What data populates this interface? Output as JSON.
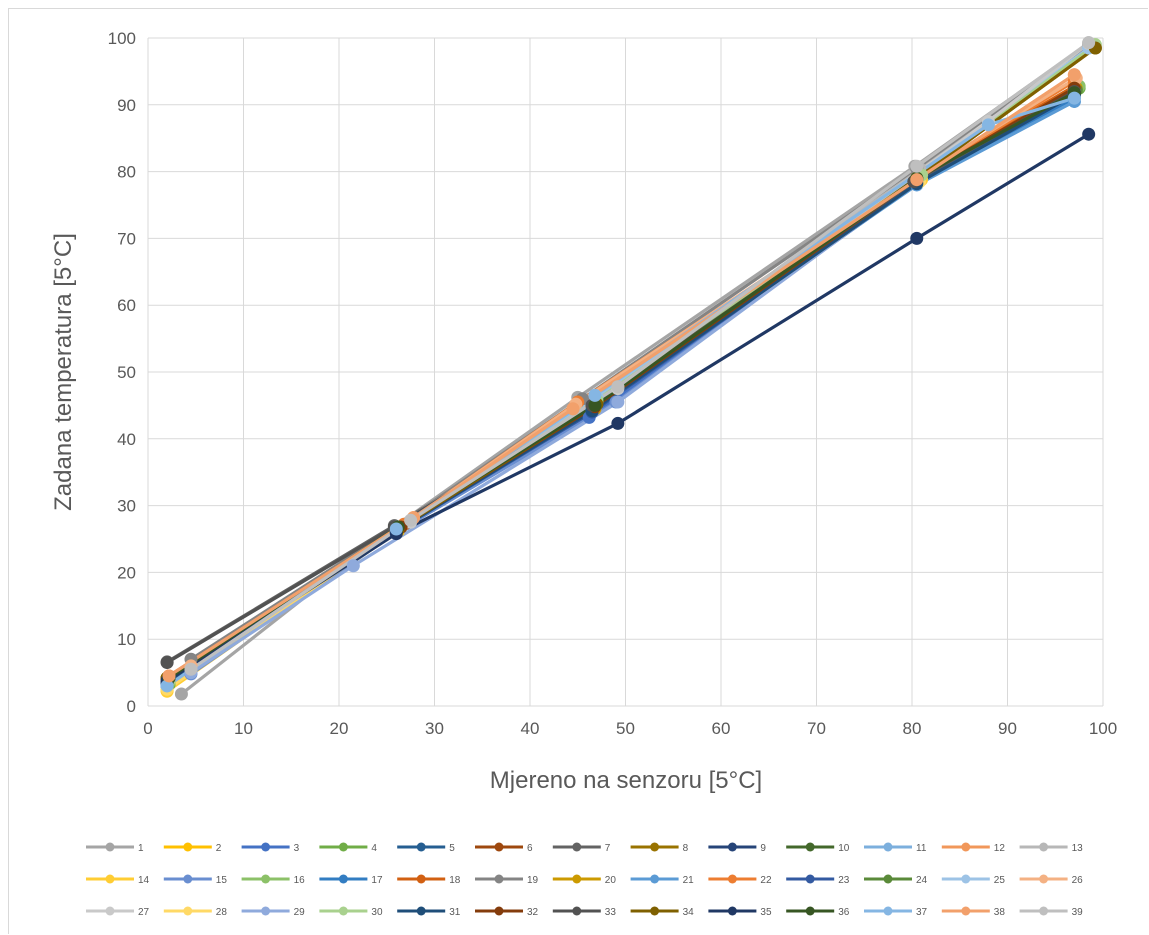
{
  "chart_data": {
    "type": "line",
    "title": "",
    "xlabel": "Mjereno na senzoru [5°C]",
    "ylabel": "Zadana temperatura [5°C]",
    "xlim": [
      0,
      100
    ],
    "ylim": [
      0,
      100
    ],
    "x_ticks": [
      0,
      10,
      20,
      30,
      40,
      50,
      60,
      70,
      80,
      90,
      100
    ],
    "y_ticks": [
      0,
      10,
      20,
      30,
      40,
      50,
      60,
      70,
      80,
      90,
      100
    ],
    "grid": true,
    "legend_position": "bottom",
    "colors": [
      "#a5a5a5",
      "#ffc000",
      "#4472c4",
      "#70ad47",
      "#255e91",
      "#9e480e",
      "#636363",
      "#997300",
      "#264478",
      "#43682b",
      "#7cafdd",
      "#f1975a",
      "#b7b7b7",
      "#ffcd33",
      "#698ed0",
      "#8cc168",
      "#327dc2",
      "#d26012",
      "#848484",
      "#cc9a00",
      "#5b9bd5",
      "#ed7d31",
      "#335aa1",
      "#5a8a39",
      "#9dc3e6",
      "#f4b183",
      "#c9c9c9",
      "#ffd966",
      "#8faadc",
      "#a9d18e",
      "#1f4e79",
      "#843c0c",
      "#525252",
      "#7f6000",
      "#203864",
      "#375623",
      "#85b6e3",
      "#f2a06b",
      "#bfbfbf"
    ],
    "series": [
      {
        "name": "1",
        "x": [
          3.5,
          25.8,
          45.0,
          80.3,
          98.5
        ],
        "y": [
          1.8,
          26.8,
          46.2,
          80.8,
          99.2
        ]
      },
      {
        "name": "2",
        "x": [
          2.0,
          26.2,
          46.5,
          80.8,
          97.2
        ],
        "y": [
          2.3,
          26.2,
          44.2,
          78.8,
          92.5
        ]
      },
      {
        "name": "3",
        "x": [
          2.0,
          26.0,
          46.2,
          80.5,
          97.0
        ],
        "y": [
          3.0,
          26.5,
          43.2,
          78.2,
          91.8
        ]
      },
      {
        "name": "4",
        "x": [
          2.2,
          26.5,
          46.8,
          80.8,
          97.5
        ],
        "y": [
          3.2,
          26.8,
          45.2,
          79.2,
          92.5
        ]
      },
      {
        "name": "5",
        "x": [
          2.0,
          26.0,
          46.5,
          80.5,
          97.0
        ],
        "y": [
          3.5,
          26.2,
          44.5,
          78.5,
          91.5
        ]
      },
      {
        "name": "6",
        "x": [
          2.0,
          26.5,
          46.8,
          80.5,
          97.0
        ],
        "y": [
          4.2,
          26.8,
          44.8,
          78.8,
          92.2
        ]
      },
      {
        "name": "7",
        "x": [
          2.0,
          25.8,
          46.5,
          80.2,
          97.0
        ],
        "y": [
          6.6,
          27.0,
          45.0,
          78.5,
          92.0
        ]
      },
      {
        "name": "8",
        "x": [
          2.0,
          26.2,
          47.0,
          80.5,
          99.2
        ],
        "y": [
          4.2,
          26.5,
          45.2,
          79.0,
          98.5
        ]
      },
      {
        "name": "9",
        "x": [
          2.2,
          26.2,
          47.0,
          80.8,
          97.0
        ],
        "y": [
          4.0,
          26.5,
          45.2,
          79.2,
          91.5
        ]
      },
      {
        "name": "10",
        "x": [
          2.2,
          26.2,
          46.8,
          80.5,
          97.0
        ],
        "y": [
          4.2,
          26.8,
          45.0,
          79.0,
          92.0
        ]
      },
      {
        "name": "11",
        "x": [
          2.0,
          26.0,
          46.8,
          80.5,
          97.0
        ],
        "y": [
          3.0,
          26.5,
          46.5,
          78.5,
          90.5
        ]
      },
      {
        "name": "12",
        "x": [
          2.2,
          27.8,
          44.5,
          80.5,
          97.0
        ],
        "y": [
          4.5,
          28.2,
          44.5,
          78.8,
          94.5
        ]
      },
      {
        "name": "13",
        "x": [
          4.5,
          27.5,
          49.2,
          80.8,
          98.5
        ],
        "y": [
          5.2,
          27.8,
          47.8,
          80.5,
          99.3
        ]
      },
      {
        "name": "14",
        "x": [
          2.0,
          26.0,
          46.8,
          81.0,
          97.0
        ],
        "y": [
          2.2,
          26.2,
          44.5,
          78.8,
          92.5
        ]
      },
      {
        "name": "15",
        "x": [
          4.5,
          26.0,
          49.0,
          80.5,
          97.0
        ],
        "y": [
          4.8,
          26.0,
          45.5,
          78.5,
          92.0
        ]
      },
      {
        "name": "16",
        "x": [
          2.2,
          26.5,
          47.0,
          80.8,
          97.5
        ],
        "y": [
          3.5,
          26.8,
          45.5,
          79.2,
          92.8
        ]
      },
      {
        "name": "17",
        "x": [
          2.0,
          26.0,
          46.5,
          80.5,
          97.0
        ],
        "y": [
          3.0,
          26.2,
          44.2,
          78.2,
          91.0
        ]
      },
      {
        "name": "18",
        "x": [
          2.2,
          26.5,
          46.5,
          80.5,
          97.0
        ],
        "y": [
          4.2,
          26.8,
          44.8,
          79.0,
          92.8
        ]
      },
      {
        "name": "19",
        "x": [
          4.5,
          26.0,
          45.5,
          80.5,
          98.5
        ],
        "y": [
          7.0,
          26.8,
          46.0,
          80.5,
          99.0
        ]
      },
      {
        "name": "20",
        "x": [
          2.2,
          26.2,
          46.8,
          80.8,
          97.2
        ],
        "y": [
          3.8,
          26.5,
          44.5,
          79.0,
          92.5
        ]
      },
      {
        "name": "21",
        "x": [
          2.0,
          26.0,
          46.5,
          80.5,
          97.0
        ],
        "y": [
          3.0,
          26.5,
          44.5,
          78.0,
          90.5
        ]
      },
      {
        "name": "22",
        "x": [
          2.2,
          26.8,
          45.0,
          80.5,
          97.0
        ],
        "y": [
          4.5,
          27.2,
          45.5,
          79.0,
          93.5
        ]
      },
      {
        "name": "23",
        "x": [
          2.0,
          26.0,
          46.5,
          80.5,
          97.0
        ],
        "y": [
          3.5,
          26.2,
          44.0,
          78.2,
          91.5
        ]
      },
      {
        "name": "24",
        "x": [
          2.2,
          26.2,
          46.8,
          80.5,
          97.2
        ],
        "y": [
          4.0,
          26.5,
          45.0,
          79.0,
          92.2
        ]
      },
      {
        "name": "25",
        "x": [
          4.5,
          26.5,
          47.0,
          88.0,
          98.5
        ],
        "y": [
          5.8,
          26.8,
          46.2,
          87.2,
          98.5
        ]
      },
      {
        "name": "26",
        "x": [
          4.5,
          27.8,
          44.8,
          80.8,
          97.2
        ],
        "y": [
          6.0,
          28.2,
          45.2,
          79.5,
          94.0
        ]
      },
      {
        "name": "27",
        "x": [
          4.5,
          27.5,
          49.2,
          88.0,
          98.5
        ],
        "y": [
          5.5,
          27.5,
          47.5,
          87.5,
          99.2
        ]
      },
      {
        "name": "28",
        "x": [
          2.0,
          26.0,
          46.8,
          80.8,
          97.0
        ],
        "y": [
          2.5,
          26.2,
          44.8,
          78.5,
          92.5
        ]
      },
      {
        "name": "29",
        "x": [
          4.5,
          21.5,
          49.2,
          80.5,
          97.0
        ],
        "y": [
          5.0,
          21.0,
          45.5,
          78.5,
          92.2
        ]
      },
      {
        "name": "30",
        "x": [
          2.2,
          26.5,
          47.0,
          81.0,
          99.2
        ],
        "y": [
          3.8,
          26.8,
          45.8,
          79.5,
          99.0
        ]
      },
      {
        "name": "31",
        "x": [
          2.0,
          26.0,
          46.5,
          80.5,
          97.0
        ],
        "y": [
          3.5,
          26.2,
          44.2,
          78.2,
          91.5
        ]
      },
      {
        "name": "32",
        "x": [
          2.2,
          26.5,
          46.8,
          80.5,
          97.0
        ],
        "y": [
          4.2,
          26.8,
          44.8,
          78.8,
          92.5
        ]
      },
      {
        "name": "33",
        "x": [
          2.0,
          25.8,
          46.5,
          80.2,
          97.0
        ],
        "y": [
          6.5,
          26.8,
          45.0,
          78.5,
          92.0
        ]
      },
      {
        "name": "34",
        "x": [
          2.0,
          26.2,
          47.0,
          80.5,
          99.2
        ],
        "y": [
          4.2,
          26.5,
          45.2,
          79.0,
          98.5
        ]
      },
      {
        "name": "35",
        "x": [
          2.0,
          26.0,
          49.2,
          80.5,
          98.5
        ],
        "y": [
          3.8,
          25.8,
          42.3,
          70.0,
          85.6
        ]
      },
      {
        "name": "36",
        "x": [
          2.2,
          26.2,
          46.8,
          80.5,
          97.0
        ],
        "y": [
          4.2,
          26.8,
          45.0,
          79.0,
          91.8
        ]
      },
      {
        "name": "37",
        "x": [
          2.0,
          26.0,
          46.8,
          88.0,
          97.0
        ],
        "y": [
          3.0,
          26.5,
          46.5,
          87.0,
          91.0
        ]
      },
      {
        "name": "38",
        "x": [
          2.2,
          27.8,
          44.5,
          80.5,
          97.0
        ],
        "y": [
          4.5,
          28.2,
          44.5,
          78.8,
          94.5
        ]
      },
      {
        "name": "39",
        "x": [
          4.5,
          27.5,
          49.2,
          80.5,
          98.5
        ],
        "y": [
          5.5,
          27.8,
          47.8,
          80.8,
          99.3
        ]
      }
    ]
  }
}
